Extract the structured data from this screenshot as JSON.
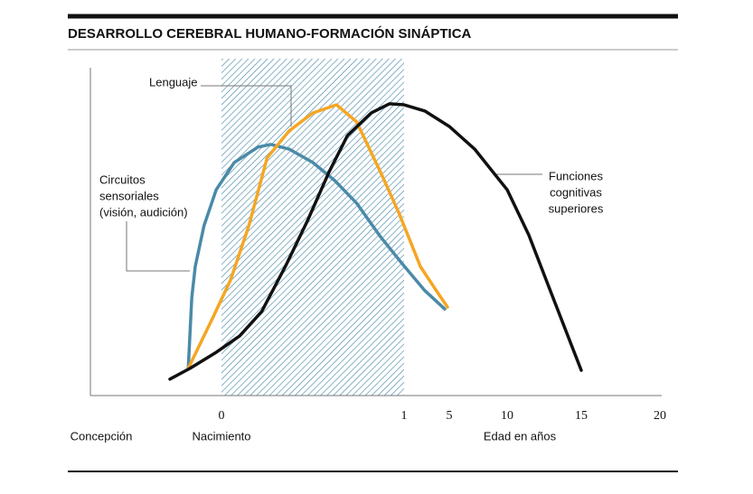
{
  "chart_data": {
    "type": "line",
    "title": "DESARROLLO CEREBRAL HUMANO-FORMACIÓN SINÁPTICA",
    "xlabel": "Edad en años",
    "x_labels": [
      {
        "value": -0.75,
        "label": "Concepción"
      },
      {
        "value": 0,
        "label": "Nacimiento"
      }
    ],
    "xlim": [
      -0.75,
      20
    ],
    "xticks": [
      0,
      1,
      5,
      10,
      15,
      20
    ],
    "ylim": [
      0,
      100
    ],
    "shade": [
      0,
      1
    ],
    "shade_color": "#4a8aa8",
    "series": [
      {
        "name": [
          "Circuitos",
          "sensoriales",
          "(visión, audición)"
        ],
        "color": "#4a8aa8",
        "x": [
          -0.19,
          -0.17,
          -0.15,
          -0.1,
          -0.03,
          0.07,
          0.2,
          0.27,
          0.37,
          0.5,
          0.62,
          0.74,
          0.87,
          0.99,
          2.84,
          4.6
        ],
        "values": [
          8.3,
          29.8,
          39.4,
          51.8,
          62.8,
          71.1,
          75.8,
          76.6,
          75.2,
          71.1,
          65.6,
          58.7,
          48.5,
          40.2,
          32,
          26.4
        ]
      },
      {
        "name": [
          "Lenguaje"
        ],
        "color": "#f5a623",
        "x": [
          -0.19,
          -0.05,
          0.05,
          0.15,
          0.25,
          0.37,
          0.5,
          0.63,
          0.74,
          0.87,
          0.97,
          1.64,
          2.44,
          3.64,
          4.84
        ],
        "values": [
          8.3,
          23.7,
          35.3,
          51.8,
          72.5,
          80.7,
          86.2,
          88.7,
          83.5,
          68.3,
          55.9,
          46.3,
          39.4,
          33.1,
          27
        ]
      },
      {
        "name": [
          "Funciones",
          "cognitivas",
          "superiores"
        ],
        "color": "#111111",
        "x": [
          -0.295,
          -0.18,
          -0.03,
          0.1,
          0.22,
          0.35,
          0.47,
          0.59,
          0.69,
          0.82,
          0.92,
          1,
          2.84,
          5,
          7.19,
          8.75,
          10,
          11.46,
          12.99,
          15
        ],
        "values": [
          5,
          8.3,
          13.2,
          18.2,
          25.6,
          39.4,
          53.2,
          68.3,
          79.3,
          86.2,
          89,
          88.7,
          86.8,
          82.1,
          75.2,
          68.3,
          62.8,
          49,
          31.1,
          7.7
        ]
      }
    ]
  }
}
